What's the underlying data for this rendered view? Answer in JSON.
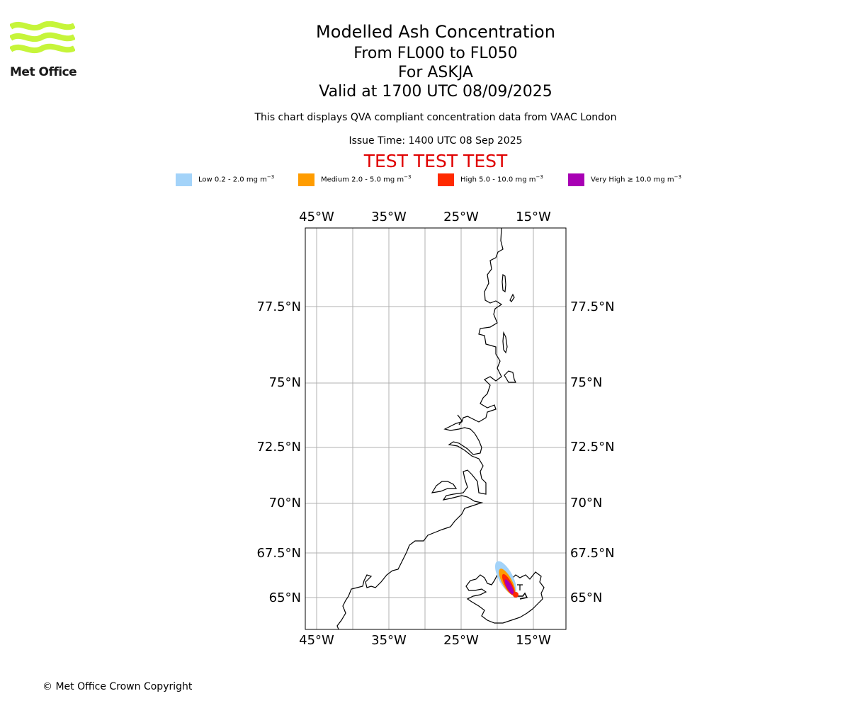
{
  "logo": {
    "name": "Met Office"
  },
  "header": {
    "title": "Modelled Ash Concentration",
    "levels": "From FL000 to FL050",
    "volcano": "For ASKJA",
    "valid": "Valid at 1700 UTC 08/09/2025",
    "description": "This chart displays QVA compliant concentration data from VAAC London",
    "issue_time": "Issue Time: 1400 UTC 08 Sep 2025",
    "test_banner": "TEST TEST TEST"
  },
  "legend": [
    {
      "label": "Low 0.2 - 2.0 mg m",
      "color": "#a3d3f9"
    },
    {
      "label": "Medium 2.0 - 5.0 mg m",
      "color": "#ff9c00"
    },
    {
      "label": "High 5.0 - 10.0 mg m",
      "color": "#ff2a00"
    },
    {
      "label": "Very High ≥ 10.0 mg m",
      "color": "#a800b4"
    }
  ],
  "legend_unit_exponent": "−3",
  "axes": {
    "longitude_ticks": [
      "45°W",
      "35°W",
      "25°W",
      "15°W"
    ],
    "latitude_ticks": [
      "77.5°N",
      "75°N",
      "72.5°N",
      "70°N",
      "67.5°N",
      "65°N"
    ]
  },
  "footer": {
    "copyright": "© Met Office Crown Copyright"
  }
}
